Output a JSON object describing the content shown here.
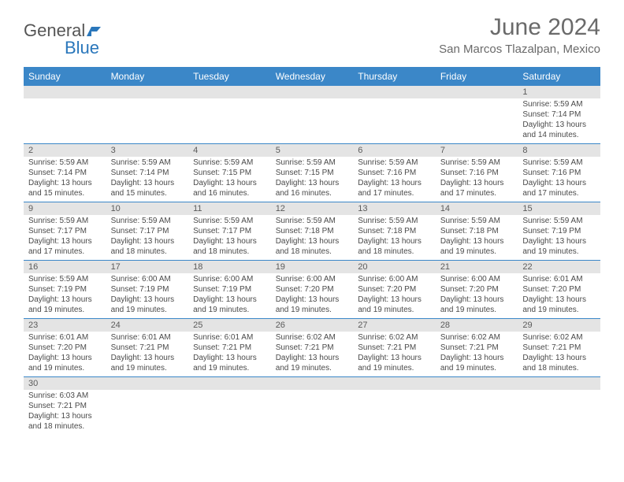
{
  "logo": {
    "part1": "General",
    "part2": "Blue"
  },
  "title": "June 2024",
  "location": "San Marcos Tlazalpan, Mexico",
  "colors": {
    "header_bg": "#3b87c8",
    "header_text": "#ffffff",
    "daynum_bg": "#e4e4e4",
    "text": "#4a4a4a",
    "title_text": "#6a6a6a",
    "logo_gray": "#555555",
    "logo_blue": "#2a77bb",
    "border": "#3b87c8"
  },
  "weekdays": [
    "Sunday",
    "Monday",
    "Tuesday",
    "Wednesday",
    "Thursday",
    "Friday",
    "Saturday"
  ],
  "weeks": [
    [
      {
        "day": "",
        "sunrise": "",
        "sunset": "",
        "daylight": ""
      },
      {
        "day": "",
        "sunrise": "",
        "sunset": "",
        "daylight": ""
      },
      {
        "day": "",
        "sunrise": "",
        "sunset": "",
        "daylight": ""
      },
      {
        "day": "",
        "sunrise": "",
        "sunset": "",
        "daylight": ""
      },
      {
        "day": "",
        "sunrise": "",
        "sunset": "",
        "daylight": ""
      },
      {
        "day": "",
        "sunrise": "",
        "sunset": "",
        "daylight": ""
      },
      {
        "day": "1",
        "sunrise": "Sunrise: 5:59 AM",
        "sunset": "Sunset: 7:14 PM",
        "daylight": "Daylight: 13 hours and 14 minutes."
      }
    ],
    [
      {
        "day": "2",
        "sunrise": "Sunrise: 5:59 AM",
        "sunset": "Sunset: 7:14 PM",
        "daylight": "Daylight: 13 hours and 15 minutes."
      },
      {
        "day": "3",
        "sunrise": "Sunrise: 5:59 AM",
        "sunset": "Sunset: 7:14 PM",
        "daylight": "Daylight: 13 hours and 15 minutes."
      },
      {
        "day": "4",
        "sunrise": "Sunrise: 5:59 AM",
        "sunset": "Sunset: 7:15 PM",
        "daylight": "Daylight: 13 hours and 16 minutes."
      },
      {
        "day": "5",
        "sunrise": "Sunrise: 5:59 AM",
        "sunset": "Sunset: 7:15 PM",
        "daylight": "Daylight: 13 hours and 16 minutes."
      },
      {
        "day": "6",
        "sunrise": "Sunrise: 5:59 AM",
        "sunset": "Sunset: 7:16 PM",
        "daylight": "Daylight: 13 hours and 17 minutes."
      },
      {
        "day": "7",
        "sunrise": "Sunrise: 5:59 AM",
        "sunset": "Sunset: 7:16 PM",
        "daylight": "Daylight: 13 hours and 17 minutes."
      },
      {
        "day": "8",
        "sunrise": "Sunrise: 5:59 AM",
        "sunset": "Sunset: 7:16 PM",
        "daylight": "Daylight: 13 hours and 17 minutes."
      }
    ],
    [
      {
        "day": "9",
        "sunrise": "Sunrise: 5:59 AM",
        "sunset": "Sunset: 7:17 PM",
        "daylight": "Daylight: 13 hours and 17 minutes."
      },
      {
        "day": "10",
        "sunrise": "Sunrise: 5:59 AM",
        "sunset": "Sunset: 7:17 PM",
        "daylight": "Daylight: 13 hours and 18 minutes."
      },
      {
        "day": "11",
        "sunrise": "Sunrise: 5:59 AM",
        "sunset": "Sunset: 7:17 PM",
        "daylight": "Daylight: 13 hours and 18 minutes."
      },
      {
        "day": "12",
        "sunrise": "Sunrise: 5:59 AM",
        "sunset": "Sunset: 7:18 PM",
        "daylight": "Daylight: 13 hours and 18 minutes."
      },
      {
        "day": "13",
        "sunrise": "Sunrise: 5:59 AM",
        "sunset": "Sunset: 7:18 PM",
        "daylight": "Daylight: 13 hours and 18 minutes."
      },
      {
        "day": "14",
        "sunrise": "Sunrise: 5:59 AM",
        "sunset": "Sunset: 7:18 PM",
        "daylight": "Daylight: 13 hours and 19 minutes."
      },
      {
        "day": "15",
        "sunrise": "Sunrise: 5:59 AM",
        "sunset": "Sunset: 7:19 PM",
        "daylight": "Daylight: 13 hours and 19 minutes."
      }
    ],
    [
      {
        "day": "16",
        "sunrise": "Sunrise: 5:59 AM",
        "sunset": "Sunset: 7:19 PM",
        "daylight": "Daylight: 13 hours and 19 minutes."
      },
      {
        "day": "17",
        "sunrise": "Sunrise: 6:00 AM",
        "sunset": "Sunset: 7:19 PM",
        "daylight": "Daylight: 13 hours and 19 minutes."
      },
      {
        "day": "18",
        "sunrise": "Sunrise: 6:00 AM",
        "sunset": "Sunset: 7:19 PM",
        "daylight": "Daylight: 13 hours and 19 minutes."
      },
      {
        "day": "19",
        "sunrise": "Sunrise: 6:00 AM",
        "sunset": "Sunset: 7:20 PM",
        "daylight": "Daylight: 13 hours and 19 minutes."
      },
      {
        "day": "20",
        "sunrise": "Sunrise: 6:00 AM",
        "sunset": "Sunset: 7:20 PM",
        "daylight": "Daylight: 13 hours and 19 minutes."
      },
      {
        "day": "21",
        "sunrise": "Sunrise: 6:00 AM",
        "sunset": "Sunset: 7:20 PM",
        "daylight": "Daylight: 13 hours and 19 minutes."
      },
      {
        "day": "22",
        "sunrise": "Sunrise: 6:01 AM",
        "sunset": "Sunset: 7:20 PM",
        "daylight": "Daylight: 13 hours and 19 minutes."
      }
    ],
    [
      {
        "day": "23",
        "sunrise": "Sunrise: 6:01 AM",
        "sunset": "Sunset: 7:20 PM",
        "daylight": "Daylight: 13 hours and 19 minutes."
      },
      {
        "day": "24",
        "sunrise": "Sunrise: 6:01 AM",
        "sunset": "Sunset: 7:21 PM",
        "daylight": "Daylight: 13 hours and 19 minutes."
      },
      {
        "day": "25",
        "sunrise": "Sunrise: 6:01 AM",
        "sunset": "Sunset: 7:21 PM",
        "daylight": "Daylight: 13 hours and 19 minutes."
      },
      {
        "day": "26",
        "sunrise": "Sunrise: 6:02 AM",
        "sunset": "Sunset: 7:21 PM",
        "daylight": "Daylight: 13 hours and 19 minutes."
      },
      {
        "day": "27",
        "sunrise": "Sunrise: 6:02 AM",
        "sunset": "Sunset: 7:21 PM",
        "daylight": "Daylight: 13 hours and 19 minutes."
      },
      {
        "day": "28",
        "sunrise": "Sunrise: 6:02 AM",
        "sunset": "Sunset: 7:21 PM",
        "daylight": "Daylight: 13 hours and 19 minutes."
      },
      {
        "day": "29",
        "sunrise": "Sunrise: 6:02 AM",
        "sunset": "Sunset: 7:21 PM",
        "daylight": "Daylight: 13 hours and 18 minutes."
      }
    ],
    [
      {
        "day": "30",
        "sunrise": "Sunrise: 6:03 AM",
        "sunset": "Sunset: 7:21 PM",
        "daylight": "Daylight: 13 hours and 18 minutes."
      },
      {
        "day": "",
        "sunrise": "",
        "sunset": "",
        "daylight": ""
      },
      {
        "day": "",
        "sunrise": "",
        "sunset": "",
        "daylight": ""
      },
      {
        "day": "",
        "sunrise": "",
        "sunset": "",
        "daylight": ""
      },
      {
        "day": "",
        "sunrise": "",
        "sunset": "",
        "daylight": ""
      },
      {
        "day": "",
        "sunrise": "",
        "sunset": "",
        "daylight": ""
      },
      {
        "day": "",
        "sunrise": "",
        "sunset": "",
        "daylight": ""
      }
    ]
  ]
}
